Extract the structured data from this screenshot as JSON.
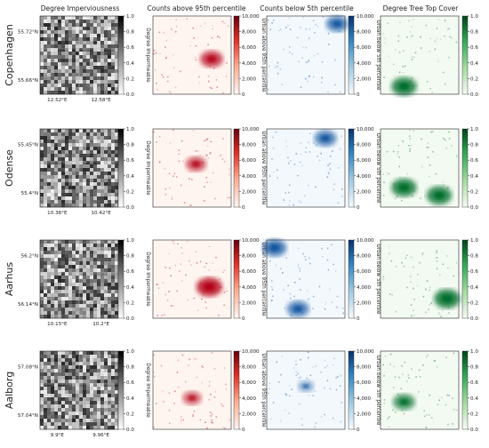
{
  "figure": {
    "column_titles": [
      "Degree Imperviousness",
      "Counts above 95th percentile",
      "Counts below 5th percentile",
      "Degree Tree Top Cover"
    ],
    "colorbar_labels": [
      "Degree Impermeable",
      "Urban above 95th percentile",
      "Urban below 5th percentile",
      "Degree Tree Top Cover"
    ],
    "colorbar_ticks": [
      [
        "0.0",
        "0.2",
        "0.4",
        "0.6",
        "0.8",
        "1.0"
      ],
      [
        "0",
        "2,000",
        "4,000",
        "6,000",
        "8,000",
        "10,000"
      ],
      [
        "0",
        "2,000",
        "4,000",
        "6,000",
        "8,000",
        "10,000"
      ],
      [
        "0.0",
        "0.2",
        "0.4",
        "0.6",
        "0.8",
        "1.0"
      ]
    ],
    "colormaps": [
      "Greys",
      "Reds",
      "Blues",
      "Greens"
    ],
    "colors": {
      "greys": [
        "#ffffff",
        "#000000"
      ],
      "reds": [
        "#fff5f0",
        "#67000d"
      ],
      "blues": [
        "#f7fbff",
        "#08306b"
      ],
      "greens": [
        "#f7fcf5",
        "#00441b"
      ]
    }
  },
  "chart_data": [
    {
      "type": "heatmap",
      "city": "Copenhagen",
      "lat_ticks": [
        "55.72°N",
        "55.66°N"
      ],
      "lon_ticks": [
        "12.52°E",
        "12.58°E"
      ],
      "panels": [
        {
          "variable": "Degree Imperviousness",
          "range": [
            0,
            1
          ],
          "description": "dense grey/black urban pattern, dark fill across most of area"
        },
        {
          "variable": "Counts above 95th percentile",
          "range": [
            0,
            10000
          ],
          "hotspots": [
            {
              "pos": [
                0.75,
                0.55
              ],
              "value": 7500
            }
          ]
        },
        {
          "variable": "Counts below 5th percentile",
          "range": [
            0,
            10000
          ],
          "hotspots": [
            {
              "pos": [
                0.9,
                0.1
              ],
              "value": 7000
            }
          ]
        },
        {
          "variable": "Degree Tree Top Cover",
          "range": [
            0,
            1
          ],
          "hotspots": [
            {
              "pos": [
                0.3,
                0.9
              ],
              "value": 0.9
            }
          ]
        }
      ]
    },
    {
      "type": "heatmap",
      "city": "Odense",
      "lat_ticks": [
        "55.45°N",
        "55.4°N"
      ],
      "lon_ticks": [
        "10.36°E",
        "10.42°E"
      ],
      "panels": [
        {
          "variable": "Degree Imperviousness",
          "range": [
            0,
            1
          ]
        },
        {
          "variable": "Counts above 95th percentile",
          "range": [
            0,
            10000
          ],
          "hotspots": [
            {
              "pos": [
                0.55,
                0.45
              ],
              "value": 6000
            }
          ]
        },
        {
          "variable": "Counts below 5th percentile",
          "range": [
            0,
            10000
          ],
          "hotspots": [
            {
              "pos": [
                0.75,
                0.12
              ],
              "value": 7000
            }
          ]
        },
        {
          "variable": "Degree Tree Top Cover",
          "range": [
            0,
            1
          ],
          "hotspots": [
            {
              "pos": [
                0.3,
                0.75
              ],
              "value": 0.9
            },
            {
              "pos": [
                0.75,
                0.85
              ],
              "value": 0.9
            }
          ]
        }
      ]
    },
    {
      "type": "heatmap",
      "city": "Aarhus",
      "lat_ticks": [
        "56.2°N",
        "56.14°N"
      ],
      "lon_ticks": [
        "10.15°E",
        "10.2°E"
      ],
      "panels": [
        {
          "variable": "Degree Imperviousness",
          "range": [
            0,
            1
          ]
        },
        {
          "variable": "Counts above 95th percentile",
          "range": [
            0,
            10000
          ],
          "hotspots": [
            {
              "pos": [
                0.72,
                0.6
              ],
              "value": 9500
            }
          ]
        },
        {
          "variable": "Counts below 5th percentile",
          "range": [
            0,
            10000
          ],
          "hotspots": [
            {
              "pos": [
                0.1,
                0.1
              ],
              "value": 8000
            },
            {
              "pos": [
                0.4,
                0.88
              ],
              "value": 7000
            }
          ]
        },
        {
          "variable": "Degree Tree Top Cover",
          "range": [
            0,
            1
          ],
          "hotspots": [
            {
              "pos": [
                0.85,
                0.75
              ],
              "value": 0.95
            }
          ]
        }
      ]
    },
    {
      "type": "heatmap",
      "city": "Aalborg",
      "lat_ticks": [
        "57.08°N",
        "57.04°N"
      ],
      "lon_ticks": [
        "9.9°E",
        "9.96°E"
      ],
      "panels": [
        {
          "variable": "Degree Imperviousness",
          "range": [
            0,
            1
          ]
        },
        {
          "variable": "Counts above 95th percentile",
          "range": [
            0,
            10000
          ],
          "hotspots": [
            {
              "pos": [
                0.5,
                0.6
              ],
              "value": 5000
            }
          ]
        },
        {
          "variable": "Counts below 5th percentile",
          "range": [
            0,
            10000
          ],
          "hotspots": [
            {
              "pos": [
                0.5,
                0.45
              ],
              "value": 3000
            }
          ]
        },
        {
          "variable": "Degree Tree Top Cover",
          "range": [
            0,
            1
          ],
          "hotspots": [
            {
              "pos": [
                0.3,
                0.65
              ],
              "value": 0.7
            }
          ]
        }
      ]
    }
  ]
}
